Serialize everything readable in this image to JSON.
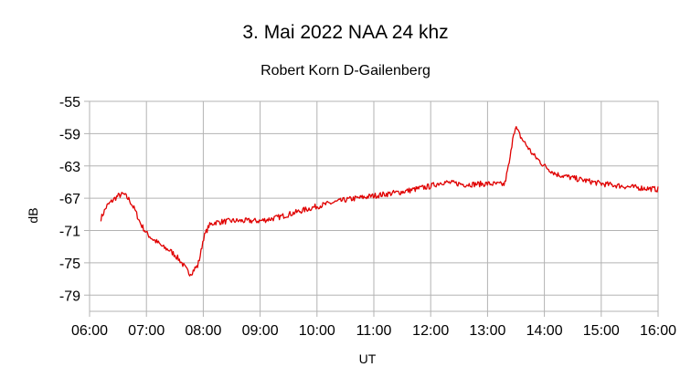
{
  "chart_data": {
    "type": "line",
    "title": "3. Mai 2022 NAA 24 khz",
    "subtitle": "Robert Korn D-Gailenberg",
    "xlabel": "UT",
    "ylabel": "dB",
    "xlim": [
      6,
      16
    ],
    "ylim": [
      -81,
      -55
    ],
    "x_ticks": [
      "06:00",
      "07:00",
      "08:00",
      "09:00",
      "10:00",
      "11:00",
      "12:00",
      "13:00",
      "14:00",
      "15:00",
      "16:00"
    ],
    "y_ticks": [
      "-55",
      "-59",
      "-63",
      "-67",
      "-71",
      "-75",
      "-79"
    ],
    "grid": true,
    "legend": "none",
    "series": [
      {
        "color": "#e00000",
        "x": [
          6.2,
          6.3,
          6.4,
          6.5,
          6.6,
          6.7,
          6.8,
          6.9,
          7.0,
          7.1,
          7.2,
          7.3,
          7.4,
          7.5,
          7.6,
          7.7,
          7.75,
          7.8,
          7.85,
          7.9,
          7.95,
          8.0,
          8.1,
          8.2,
          8.5,
          9.0,
          9.3,
          9.5,
          10.0,
          10.5,
          11.0,
          11.5,
          12.0,
          12.2,
          12.5,
          12.6,
          13.0,
          13.3,
          13.4,
          13.45,
          13.5,
          13.6,
          13.7,
          13.8,
          14.0,
          14.2,
          14.5,
          15.0,
          15.5,
          16.0
        ],
        "y": [
          -69.5,
          -68.0,
          -67.3,
          -66.7,
          -66.5,
          -67.2,
          -68.5,
          -70.2,
          -71.3,
          -72.0,
          -72.5,
          -73.1,
          -73.4,
          -74.0,
          -74.8,
          -75.8,
          -76.3,
          -76.2,
          -75.7,
          -75.4,
          -74.0,
          -72.0,
          -70.4,
          -70.0,
          -69.8,
          -69.8,
          -69.4,
          -69.0,
          -68.0,
          -67.2,
          -66.7,
          -66.2,
          -65.5,
          -65.0,
          -65.2,
          -65.3,
          -65.2,
          -65.3,
          -62.0,
          -59.0,
          -58.3,
          -59.6,
          -60.6,
          -61.6,
          -63.0,
          -64.0,
          -64.5,
          -65.2,
          -65.6,
          -65.9
        ]
      }
    ]
  }
}
